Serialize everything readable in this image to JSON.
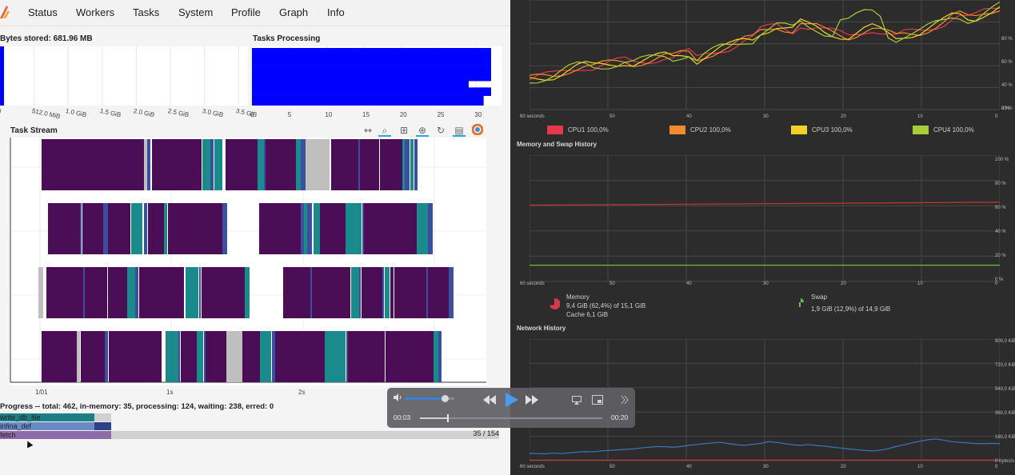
{
  "nav": {
    "items": [
      "Status",
      "Workers",
      "Tasks",
      "System",
      "Profile",
      "Graph",
      "Info"
    ]
  },
  "bytes_stored": {
    "title": "Bytes stored: 681.96 MB",
    "ticks": [
      "0",
      "512.0 MiB",
      "1.0 GiB",
      "1.5 GiB",
      "2.0 GiB",
      "2.5 GiB",
      "3.0 GiB",
      "3.5 GiB"
    ],
    "bar_values_mib": [
      60,
      60,
      60,
      60,
      60,
      60,
      60,
      60,
      60,
      60,
      60,
      60,
      60,
      60,
      60,
      60,
      60,
      60,
      60,
      60,
      60,
      60,
      60,
      60,
      60,
      60,
      60,
      60,
      60,
      60,
      60,
      60,
      60,
      60,
      60
    ]
  },
  "tasks_processing": {
    "title": "Tasks Processing",
    "ticks": [
      "0",
      "5",
      "10",
      "15",
      "20",
      "25",
      "30"
    ],
    "bar_values": [
      32,
      32,
      32,
      32,
      32,
      32,
      32,
      32,
      32,
      32,
      32,
      32,
      32,
      32,
      32,
      32,
      32,
      32,
      32,
      32,
      29,
      29,
      29,
      29,
      32,
      32,
      32,
      32,
      32,
      31,
      31,
      31,
      31,
      31,
      31
    ]
  },
  "task_stream": {
    "title": "Task Stream",
    "ticks": [
      "1/01",
      "1s",
      "2s"
    ]
  },
  "progress": {
    "summary": "Progress -- total: 462, in-memory: 35, processing: 124, waiting: 238, erred: 0",
    "bars": [
      {
        "label": "write_db_file",
        "fraction": 0.85,
        "color": "#1b7f83"
      },
      {
        "label": "infina_def",
        "fraction": 0.85,
        "color": "#6a8ac6"
      },
      {
        "label": "fetch",
        "fraction": 1.0,
        "color": "#8e6aa8"
      }
    ],
    "count": "35 / 154"
  },
  "colors": {
    "task_main": "#4a0d56",
    "task_teal": "#1a8a8d",
    "task_blue": "#3b4ea0",
    "task_gray": "#bfbfbf",
    "bar_blue": "#0000ff"
  },
  "sysmon": {
    "cpu_legend": [
      {
        "label": "CPU1",
        "value": "100,0%",
        "color": "#e8374a"
      },
      {
        "label": "CPU2",
        "value": "100,0%",
        "color": "#f28a2e"
      },
      {
        "label": "CPU3",
        "value": "100,0%",
        "color": "#f5d128"
      },
      {
        "label": "CPU4",
        "value": "100,0%",
        "color": "#a8cc3a"
      }
    ],
    "memory_title": "Memory and Swap History",
    "memory_label": "Memory",
    "memory_detail": "9,4 GiB (62,4%) of 15,1 GiB",
    "memory_cache": "Cache 6,1 GiB",
    "swap_label": "Swap",
    "swap_detail": "1,9 GiB (12,9%) of 14,9 GiB",
    "network_title": "Network History",
    "x_ticks": [
      "60 seconds",
      "50",
      "40",
      "30",
      "20",
      "10",
      "0"
    ],
    "pct_ticks": [
      "100 %",
      "80 %",
      "60 %",
      "40 %",
      "20 %",
      "0 %"
    ],
    "net_ticks": [
      "900,0 KiB/s",
      "720,0 KiB/s",
      "540,0 KiB/s",
      "360,0 KiB/s",
      "180,0 KiB/s",
      "0 bytes/s"
    ],
    "memory_pct": 62.4,
    "swap_pct": 12.9
  },
  "player": {
    "current_time": "00:03",
    "total_time": "00:20",
    "position_fraction": 0.15,
    "volume_fraction": 0.8
  }
}
